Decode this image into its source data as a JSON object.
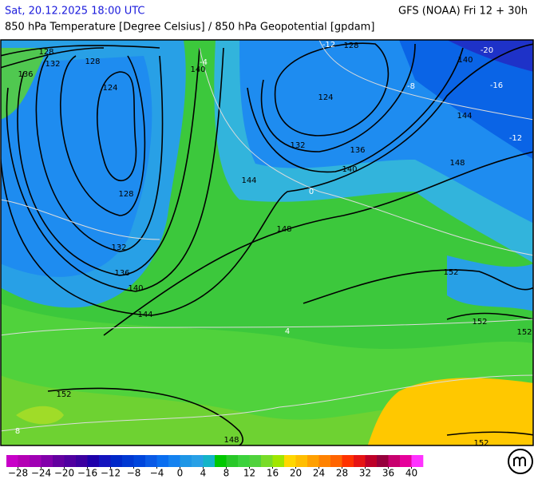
{
  "header": {
    "valid_time": "Sat, 20.12.2025 18:00 UTC",
    "model_run": "GFS (NOAA) Fri 12 + 30h",
    "title": "850 hPa Temperature [Degree Celsius] / 850 hPa Geopotential [gpdam]"
  },
  "geopotential_labels": [
    128,
    132,
    136,
    128,
    124,
    140,
    128,
    132,
    136,
    140,
    144,
    144,
    148,
    132,
    136,
    140,
    124,
    128,
    140,
    144,
    148,
    152,
    152,
    152,
    152,
    148,
    152
  ],
  "temperature_labels": [
    -20,
    -16,
    -12,
    -12,
    -8,
    -4,
    0,
    4,
    8
  ],
  "colorbar": {
    "range": [
      -30,
      42
    ],
    "ticks": [
      {
        "value": -28,
        "label": "−28"
      },
      {
        "value": -24,
        "label": "−24"
      },
      {
        "value": -20,
        "label": "−20"
      },
      {
        "value": -16,
        "label": "−16"
      },
      {
        "value": -12,
        "label": "−12"
      },
      {
        "value": -8,
        "label": "−8"
      },
      {
        "value": -4,
        "label": "−4"
      },
      0,
      4,
      8,
      12,
      16,
      20,
      24,
      28,
      32,
      36,
      40
    ],
    "colors": [
      "#c800c8",
      "#b400b4",
      "#a000b4",
      "#8200aa",
      "#6400a0",
      "#5000a0",
      "#3c00a0",
      "#1e00aa",
      "#1414be",
      "#0028c8",
      "#0038d2",
      "#0046dc",
      "#0a5ae6",
      "#0a6ef0",
      "#1482f0",
      "#1e96e6",
      "#28a0e6",
      "#14b4c8",
      "#00c800",
      "#28c828",
      "#3cd23c",
      "#50d23c",
      "#78dc28",
      "#a0e600",
      "#ffd700",
      "#ffbe00",
      "#ffa000",
      "#ff8200",
      "#ff6400",
      "#ff3200",
      "#e61414",
      "#be0028",
      "#96003c",
      "#c8006e",
      "#e6009b",
      "#ff32ff"
    ]
  }
}
